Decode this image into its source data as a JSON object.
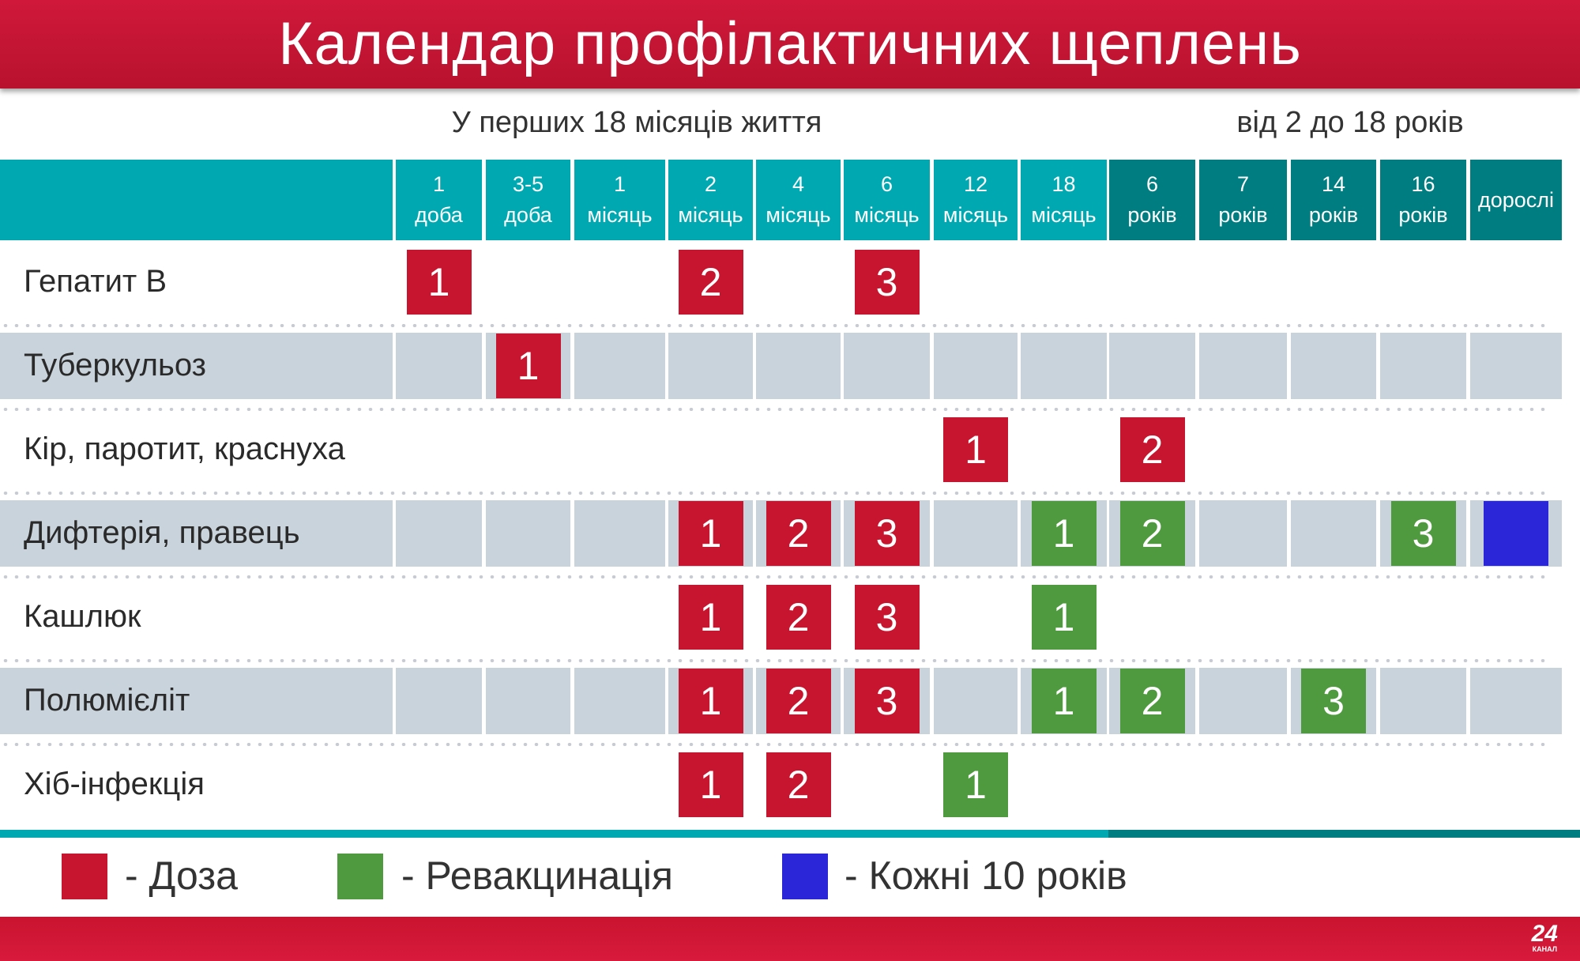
{
  "title": "Календар профілактичних щеплень",
  "subheaders": {
    "infant": "У перших 18 місяців життя",
    "child": "від 2 до 18 років"
  },
  "colors": {
    "dose": "#c8152f",
    "revaccination": "#4f9a3e",
    "every10": "#2b27d9",
    "header": "#00a9b1",
    "header_dark": "#007d80"
  },
  "columns": [
    {
      "top": "1",
      "bottom": "доба"
    },
    {
      "top": "3-5",
      "bottom": "доба"
    },
    {
      "top": "1",
      "bottom": "місяць"
    },
    {
      "top": "2",
      "bottom": "місяць"
    },
    {
      "top": "4",
      "bottom": "місяць"
    },
    {
      "top": "6",
      "bottom": "місяць"
    },
    {
      "top": "12",
      "bottom": "місяць"
    },
    {
      "top": "18",
      "bottom": "місяць"
    },
    {
      "top": "6",
      "bottom": "років"
    },
    {
      "top": "7",
      "bottom": "років"
    },
    {
      "top": "14",
      "bottom": "років"
    },
    {
      "top": "16",
      "bottom": "років"
    },
    {
      "top": "",
      "bottom": "дорослі"
    }
  ],
  "rows": [
    {
      "label": "Гепатит B",
      "shaded": false,
      "cells": [
        {
          "col": 0,
          "n": "1",
          "type": "dose"
        },
        {
          "col": 3,
          "n": "2",
          "type": "dose"
        },
        {
          "col": 5,
          "n": "3",
          "type": "dose"
        }
      ]
    },
    {
      "label": "Туберкульоз",
      "shaded": true,
      "cells": [
        {
          "col": 1,
          "n": "1",
          "type": "dose"
        }
      ]
    },
    {
      "label": "Кір, паротит, краснуха",
      "shaded": false,
      "cells": [
        {
          "col": 6,
          "n": "1",
          "type": "dose"
        },
        {
          "col": 8,
          "n": "2",
          "type": "dose"
        }
      ]
    },
    {
      "label": "Дифтерія, правець",
      "shaded": true,
      "cells": [
        {
          "col": 3,
          "n": "1",
          "type": "dose"
        },
        {
          "col": 4,
          "n": "2",
          "type": "dose"
        },
        {
          "col": 5,
          "n": "3",
          "type": "dose"
        },
        {
          "col": 7,
          "n": "1",
          "type": "revaccination"
        },
        {
          "col": 8,
          "n": "2",
          "type": "revaccination"
        },
        {
          "col": 11,
          "n": "3",
          "type": "revaccination"
        },
        {
          "col": 12,
          "n": "",
          "type": "every10"
        }
      ]
    },
    {
      "label": "Кашлюк",
      "shaded": false,
      "cells": [
        {
          "col": 3,
          "n": "1",
          "type": "dose"
        },
        {
          "col": 4,
          "n": "2",
          "type": "dose"
        },
        {
          "col": 5,
          "n": "3",
          "type": "dose"
        },
        {
          "col": 7,
          "n": "1",
          "type": "revaccination"
        }
      ]
    },
    {
      "label": "Полюмієліт",
      "shaded": true,
      "cells": [
        {
          "col": 3,
          "n": "1",
          "type": "dose"
        },
        {
          "col": 4,
          "n": "2",
          "type": "dose"
        },
        {
          "col": 5,
          "n": "3",
          "type": "dose"
        },
        {
          "col": 7,
          "n": "1",
          "type": "revaccination"
        },
        {
          "col": 8,
          "n": "2",
          "type": "revaccination"
        },
        {
          "col": 10,
          "n": "3",
          "type": "revaccination"
        }
      ]
    },
    {
      "label": "Хіб-інфекція",
      "shaded": false,
      "cells": [
        {
          "col": 3,
          "n": "1",
          "type": "dose"
        },
        {
          "col": 4,
          "n": "2",
          "type": "dose"
        },
        {
          "col": 6,
          "n": "1",
          "type": "revaccination"
        }
      ]
    }
  ],
  "legend": {
    "dose": "- Доза",
    "revaccination": "- Ревакцинація",
    "every10": "- Кожні 10 років"
  },
  "logo": {
    "number": "24",
    "text": "КАНАЛ"
  }
}
